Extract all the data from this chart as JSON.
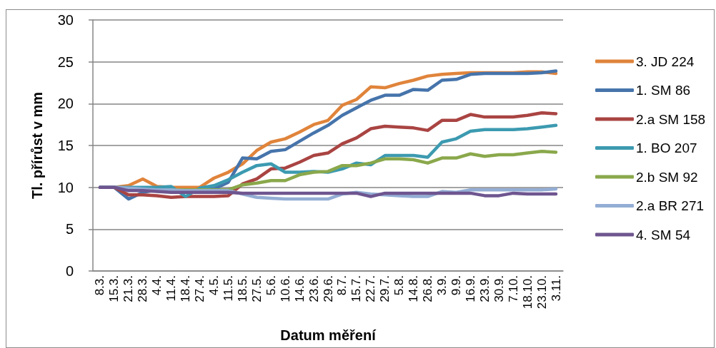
{
  "chart_data": {
    "type": "line",
    "xlabel": "Datum měření",
    "ylabel": "Tl. přírůst v mm",
    "categories": [
      "8.3.",
      "15.3.",
      "21.3.",
      "28.3.",
      "4.4.",
      "11.4.",
      "18.4.",
      "27.4.",
      "4.5.",
      "11.5.",
      "18.5.",
      "27.5.",
      "5.6.",
      "10.6.",
      "14.6.",
      "23.6.",
      "29.6.",
      "8.7.",
      "15.7.",
      "22.7.",
      "29.7.",
      "5.8.",
      "14.8.",
      "26.8.",
      "3.9.",
      "9.9.",
      "16.9.",
      "23.9.",
      "30.9.",
      "7.10.",
      "18.10.",
      "23.10.",
      "3.11."
    ],
    "series": [
      {
        "name": "3. JD 224",
        "color": "#e0843b",
        "values": [
          10,
          10,
          10.2,
          11.0,
          10.1,
          10.0,
          10.0,
          10.0,
          11.1,
          11.8,
          12.8,
          14.4,
          15.4,
          15.8,
          16.6,
          17.5,
          18.0,
          19.8,
          20.5,
          22.0,
          21.9,
          22.4,
          22.8,
          23.3,
          23.5,
          23.6,
          23.7,
          23.7,
          23.7,
          23.7,
          23.8,
          23.8,
          23.6
        ]
      },
      {
        "name": "1. SM 86",
        "color": "#4674ab",
        "values": [
          10,
          10,
          8.6,
          9.4,
          9.7,
          9.7,
          9.7,
          9.7,
          9.8,
          10.6,
          13.5,
          13.4,
          14.3,
          14.5,
          15.5,
          16.5,
          17.4,
          18.6,
          19.5,
          20.4,
          21.0,
          21.0,
          21.7,
          21.6,
          22.8,
          22.9,
          23.5,
          23.6,
          23.6,
          23.6,
          23.6,
          23.7,
          23.9
        ]
      },
      {
        "name": "2.a SM 158",
        "color": "#a94442",
        "values": [
          10,
          10,
          9.1,
          9.1,
          9.0,
          8.8,
          8.9,
          8.9,
          8.9,
          9.0,
          10.4,
          11.0,
          12.2,
          12.3,
          13.0,
          13.8,
          14.1,
          15.2,
          15.9,
          17.0,
          17.3,
          17.2,
          17.1,
          16.8,
          18.0,
          18.0,
          18.7,
          18.4,
          18.4,
          18.4,
          18.6,
          18.9,
          18.8
        ]
      },
      {
        "name": "1. BO 207",
        "color": "#3c9ab0",
        "values": [
          10,
          10,
          10.0,
          10.0,
          10.0,
          10.1,
          8.9,
          9.9,
          10.2,
          10.9,
          11.8,
          12.6,
          12.8,
          11.8,
          11.8,
          11.9,
          11.8,
          12.2,
          12.9,
          12.7,
          13.8,
          13.8,
          13.8,
          13.6,
          15.4,
          15.8,
          16.7,
          16.9,
          16.9,
          16.9,
          17.0,
          17.2,
          17.4
        ]
      },
      {
        "name": "2.b SM 92",
        "color": "#8aa84b",
        "values": [
          null,
          null,
          null,
          null,
          9.7,
          9.7,
          9.7,
          9.7,
          9.7,
          9.7,
          10.3,
          10.5,
          10.8,
          10.8,
          11.5,
          11.8,
          11.9,
          12.6,
          12.6,
          12.9,
          13.4,
          13.4,
          13.3,
          12.9,
          13.5,
          13.5,
          14.0,
          13.7,
          13.9,
          13.9,
          14.1,
          14.3,
          14.2
        ]
      },
      {
        "name": "2.a BR 271",
        "color": "#93add4",
        "values": [
          10,
          10,
          9.9,
          9.8,
          9.7,
          9.7,
          9.6,
          9.6,
          9.6,
          9.6,
          9.2,
          8.8,
          8.7,
          8.6,
          8.6,
          8.6,
          8.6,
          9.2,
          9.4,
          9.2,
          9.1,
          9.0,
          8.9,
          8.9,
          9.5,
          9.4,
          9.7,
          9.7,
          9.7,
          9.7,
          9.7,
          9.7,
          9.8
        ]
      },
      {
        "name": "4. SM 54",
        "color": "#6e558f",
        "values": [
          10,
          10,
          9.6,
          9.6,
          9.5,
          9.4,
          9.4,
          9.4,
          9.4,
          9.4,
          9.3,
          9.3,
          9.3,
          9.3,
          9.3,
          9.3,
          9.3,
          9.3,
          9.3,
          8.9,
          9.3,
          9.3,
          9.3,
          9.3,
          9.3,
          9.3,
          9.3,
          9.0,
          9.0,
          9.3,
          9.2,
          9.2,
          9.2
        ]
      }
    ],
    "ylim": [
      0,
      30
    ],
    "yticks": [
      0,
      5,
      10,
      15,
      20,
      25,
      30
    ],
    "grid": "y",
    "legend": "right",
    "marker": "none",
    "line_style": "solid"
  }
}
